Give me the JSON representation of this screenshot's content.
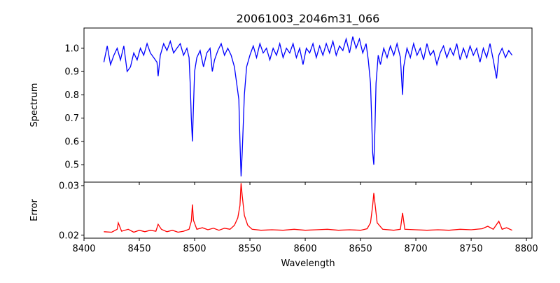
{
  "chart_data": [
    {
      "type": "line",
      "title": "20061003_2046m31_066",
      "xlabel": "",
      "ylabel": "Spectrum",
      "xlim": [
        8400,
        8805
      ],
      "ylim": [
        0.425,
        1.087
      ],
      "xticks": [
        8400,
        8450,
        8500,
        8550,
        8600,
        8650,
        8700,
        8750,
        8800
      ],
      "yticks": [
        0.5,
        0.6,
        0.7,
        0.8,
        0.9,
        1.0
      ],
      "ytick_labels": [
        "0.5",
        "0.6",
        "0.7",
        "0.8",
        "0.9",
        "1.0"
      ],
      "color": "#0000ff",
      "points": [
        [
          8418,
          0.94
        ],
        [
          8421,
          1.01
        ],
        [
          8424,
          0.93
        ],
        [
          8427,
          0.97
        ],
        [
          8430,
          1.0
        ],
        [
          8433,
          0.95
        ],
        [
          8436,
          1.01
        ],
        [
          8439,
          0.9
        ],
        [
          8442,
          0.92
        ],
        [
          8445,
          0.98
        ],
        [
          8448,
          0.95
        ],
        [
          8451,
          1.0
        ],
        [
          8454,
          0.97
        ],
        [
          8457,
          1.02
        ],
        [
          8460,
          0.98
        ],
        [
          8463,
          0.96
        ],
        [
          8466,
          0.94
        ],
        [
          8467,
          0.88
        ],
        [
          8469,
          0.97
        ],
        [
          8472,
          1.02
        ],
        [
          8475,
          0.99
        ],
        [
          8478,
          1.03
        ],
        [
          8481,
          0.98
        ],
        [
          8484,
          1.0
        ],
        [
          8487,
          1.02
        ],
        [
          8490,
          0.97
        ],
        [
          8493,
          1.0
        ],
        [
          8495,
          0.96
        ],
        [
          8496,
          0.85
        ],
        [
          8497,
          0.7
        ],
        [
          8498,
          0.6
        ],
        [
          8499,
          0.75
        ],
        [
          8500,
          0.9
        ],
        [
          8502,
          0.96
        ],
        [
          8505,
          0.99
        ],
        [
          8508,
          0.92
        ],
        [
          8511,
          0.98
        ],
        [
          8514,
          1.0
        ],
        [
          8516,
          0.9
        ],
        [
          8518,
          0.95
        ],
        [
          8521,
          0.99
        ],
        [
          8524,
          1.02
        ],
        [
          8527,
          0.97
        ],
        [
          8530,
          1.0
        ],
        [
          8533,
          0.97
        ],
        [
          8536,
          0.92
        ],
        [
          8538,
          0.85
        ],
        [
          8540,
          0.78
        ],
        [
          8541,
          0.6
        ],
        [
          8542,
          0.45
        ],
        [
          8543,
          0.55
        ],
        [
          8545,
          0.8
        ],
        [
          8547,
          0.92
        ],
        [
          8550,
          0.97
        ],
        [
          8553,
          1.01
        ],
        [
          8556,
          0.96
        ],
        [
          8559,
          1.02
        ],
        [
          8562,
          0.98
        ],
        [
          8565,
          1.0
        ],
        [
          8568,
          0.95
        ],
        [
          8571,
          1.0
        ],
        [
          8574,
          0.97
        ],
        [
          8577,
          1.02
        ],
        [
          8580,
          0.96
        ],
        [
          8583,
          1.0
        ],
        [
          8586,
          0.98
        ],
        [
          8589,
          1.02
        ],
        [
          8592,
          0.96
        ],
        [
          8595,
          1.0
        ],
        [
          8598,
          0.93
        ],
        [
          8601,
          1.0
        ],
        [
          8604,
          0.98
        ],
        [
          8607,
          1.02
        ],
        [
          8610,
          0.96
        ],
        [
          8613,
          1.01
        ],
        [
          8616,
          0.97
        ],
        [
          8619,
          1.02
        ],
        [
          8622,
          0.98
        ],
        [
          8625,
          1.03
        ],
        [
          8628,
          0.97
        ],
        [
          8631,
          1.01
        ],
        [
          8634,
          0.99
        ],
        [
          8637,
          1.04
        ],
        [
          8640,
          0.98
        ],
        [
          8643,
          1.05
        ],
        [
          8646,
          1.0
        ],
        [
          8649,
          1.04
        ],
        [
          8652,
          0.98
        ],
        [
          8655,
          1.02
        ],
        [
          8657,
          0.95
        ],
        [
          8659,
          0.85
        ],
        [
          8660,
          0.7
        ],
        [
          8661,
          0.55
        ],
        [
          8662,
          0.5
        ],
        [
          8663,
          0.65
        ],
        [
          8664,
          0.85
        ],
        [
          8666,
          0.97
        ],
        [
          8668,
          0.93
        ],
        [
          8671,
          1.0
        ],
        [
          8674,
          0.96
        ],
        [
          8677,
          1.01
        ],
        [
          8680,
          0.97
        ],
        [
          8683,
          1.02
        ],
        [
          8686,
          0.96
        ],
        [
          8687,
          0.88
        ],
        [
          8688,
          0.8
        ],
        [
          8689,
          0.92
        ],
        [
          8692,
          1.0
        ],
        [
          8695,
          0.96
        ],
        [
          8698,
          1.02
        ],
        [
          8701,
          0.97
        ],
        [
          8704,
          1.0
        ],
        [
          8707,
          0.95
        ],
        [
          8710,
          1.02
        ],
        [
          8713,
          0.97
        ],
        [
          8716,
          0.99
        ],
        [
          8719,
          0.93
        ],
        [
          8722,
          0.98
        ],
        [
          8725,
          1.01
        ],
        [
          8728,
          0.96
        ],
        [
          8731,
          1.0
        ],
        [
          8734,
          0.97
        ],
        [
          8737,
          1.02
        ],
        [
          8740,
          0.95
        ],
        [
          8743,
          1.0
        ],
        [
          8746,
          0.96
        ],
        [
          8749,
          1.01
        ],
        [
          8752,
          0.97
        ],
        [
          8755,
          1.0
        ],
        [
          8758,
          0.94
        ],
        [
          8761,
          1.0
        ],
        [
          8764,
          0.96
        ],
        [
          8767,
          1.02
        ],
        [
          8770,
          0.95
        ],
        [
          8773,
          0.87
        ],
        [
          8775,
          0.97
        ],
        [
          8778,
          1.0
        ],
        [
          8781,
          0.96
        ],
        [
          8784,
          0.99
        ],
        [
          8787,
          0.97
        ]
      ]
    },
    {
      "type": "line",
      "title": "",
      "xlabel": "Wavelength",
      "ylabel": "Error",
      "xlim": [
        8400,
        8805
      ],
      "ylim": [
        0.0194,
        0.0307
      ],
      "xticks": [
        8400,
        8450,
        8500,
        8550,
        8600,
        8650,
        8700,
        8750,
        8800
      ],
      "xtick_labels": [
        "8400",
        "8450",
        "8500",
        "8550",
        "8600",
        "8650",
        "8700",
        "8750",
        "8800"
      ],
      "yticks": [
        0.02,
        0.03
      ],
      "ytick_labels": [
        "0.02",
        "0.03"
      ],
      "color": "#ff0000",
      "points": [
        [
          8418,
          0.0207
        ],
        [
          8425,
          0.0206
        ],
        [
          8430,
          0.0212
        ],
        [
          8431,
          0.0225
        ],
        [
          8434,
          0.0208
        ],
        [
          8440,
          0.0212
        ],
        [
          8445,
          0.0206
        ],
        [
          8450,
          0.021
        ],
        [
          8455,
          0.0207
        ],
        [
          8460,
          0.021
        ],
        [
          8465,
          0.0208
        ],
        [
          8467,
          0.0222
        ],
        [
          8470,
          0.0212
        ],
        [
          8475,
          0.0207
        ],
        [
          8480,
          0.021
        ],
        [
          8485,
          0.0206
        ],
        [
          8490,
          0.0208
        ],
        [
          8495,
          0.0212
        ],
        [
          8497,
          0.0228
        ],
        [
          8498,
          0.0262
        ],
        [
          8499,
          0.023
        ],
        [
          8502,
          0.0212
        ],
        [
          8507,
          0.0215
        ],
        [
          8512,
          0.0211
        ],
        [
          8517,
          0.0214
        ],
        [
          8522,
          0.021
        ],
        [
          8527,
          0.0214
        ],
        [
          8532,
          0.0212
        ],
        [
          8536,
          0.022
        ],
        [
          8539,
          0.0235
        ],
        [
          8541,
          0.026
        ],
        [
          8542,
          0.0305
        ],
        [
          8543,
          0.028
        ],
        [
          8545,
          0.024
        ],
        [
          8548,
          0.022
        ],
        [
          8552,
          0.0212
        ],
        [
          8560,
          0.021
        ],
        [
          8570,
          0.0211
        ],
        [
          8580,
          0.021
        ],
        [
          8590,
          0.0212
        ],
        [
          8600,
          0.021
        ],
        [
          8610,
          0.0211
        ],
        [
          8620,
          0.0212
        ],
        [
          8630,
          0.021
        ],
        [
          8640,
          0.0211
        ],
        [
          8650,
          0.021
        ],
        [
          8656,
          0.0213
        ],
        [
          8659,
          0.0225
        ],
        [
          8661,
          0.026
        ],
        [
          8662,
          0.0285
        ],
        [
          8663,
          0.0265
        ],
        [
          8665,
          0.0225
        ],
        [
          8670,
          0.0212
        ],
        [
          8680,
          0.021
        ],
        [
          8686,
          0.0212
        ],
        [
          8688,
          0.0245
        ],
        [
          8690,
          0.0212
        ],
        [
          8700,
          0.0211
        ],
        [
          8710,
          0.021
        ],
        [
          8720,
          0.0211
        ],
        [
          8730,
          0.021
        ],
        [
          8740,
          0.0212
        ],
        [
          8750,
          0.0211
        ],
        [
          8760,
          0.0213
        ],
        [
          8765,
          0.0218
        ],
        [
          8770,
          0.0212
        ],
        [
          8775,
          0.0228
        ],
        [
          8778,
          0.0212
        ],
        [
          8782,
          0.0215
        ],
        [
          8787,
          0.021
        ]
      ]
    }
  ]
}
